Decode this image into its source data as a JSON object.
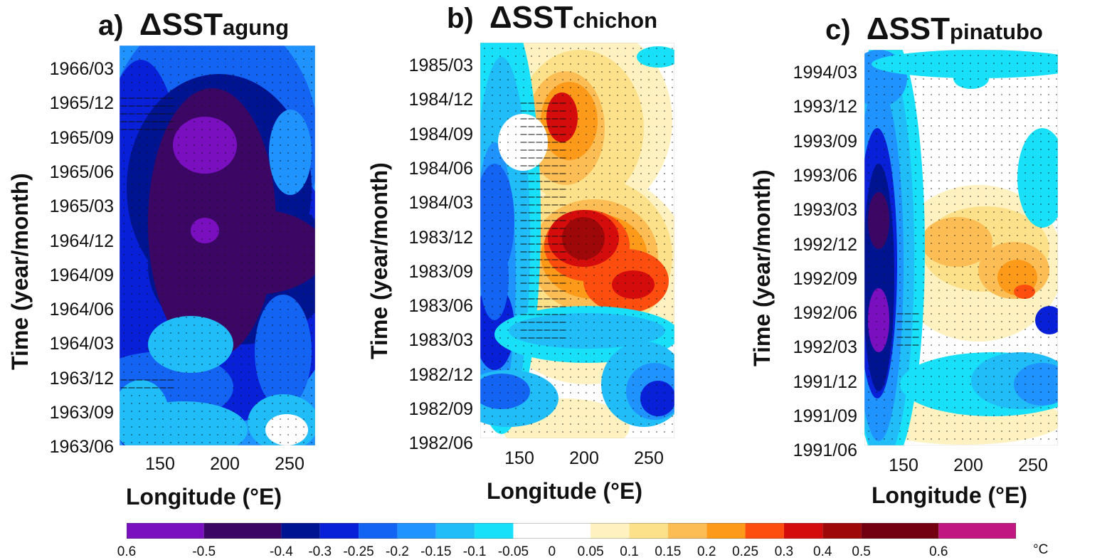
{
  "panels": [
    {
      "letter": "a)",
      "title_main": "ΔSST",
      "title_sub": "agung",
      "yticks": [
        "1966/03",
        "1965/12",
        "1965/09",
        "1965/06",
        "1965/03",
        "1964/12",
        "1964/09",
        "1964/06",
        "1964/03",
        "1963/12",
        "1963/09",
        "1963/06"
      ],
      "xticks": [
        "150",
        "200",
        "250"
      ],
      "ylabel": "Time (year/month)",
      "xlabel": "Longitude (°E)"
    },
    {
      "letter": "b)",
      "title_main": "ΔSST",
      "title_sub": "chichon",
      "yticks": [
        "1985/03",
        "1984/12",
        "1984/09",
        "1984/06",
        "1984/03",
        "1983/12",
        "1983/09",
        "1983/06",
        "1983/03",
        "1982/12",
        "1982/09",
        "1982/06"
      ],
      "xticks": [
        "150",
        "200",
        "250"
      ],
      "ylabel": "Time (year/month)",
      "xlabel": "Longitude (°E)"
    },
    {
      "letter": "c)",
      "title_main": "ΔSST",
      "title_sub": "pinatubo",
      "yticks": [
        "1994/03",
        "1993/12",
        "1993/09",
        "1993/06",
        "1993/03",
        "1992/12",
        "1992/09",
        "1992/06",
        "1992/03",
        "1991/12",
        "1991/09",
        "1991/06"
      ],
      "xticks": [
        "150",
        "200",
        "250"
      ],
      "ylabel": "Time (year/month)",
      "xlabel": "Longitude (°E)"
    }
  ],
  "colorbar": {
    "colors": [
      "#7a0fc0",
      "#3c0764",
      "#001492",
      "#0820d8",
      "#1464f4",
      "#1f93ff",
      "#20bdf8",
      "#18e0f8",
      "#ffffff",
      "#ffffff",
      "#fff2c0",
      "#fde08a",
      "#fdbd55",
      "#fd9a1a",
      "#fd4e10",
      "#d40c0c",
      "#9e0808",
      "#720010",
      "#c01880"
    ],
    "labels": [
      "0.6",
      "-0.5",
      "-0.4",
      "-0.3",
      "-0.25",
      "-0.2",
      "-0.15",
      "-0.1",
      "-0.05",
      "0",
      "0.05",
      "0.1",
      "0.15",
      "0.2",
      "0.25",
      "0.3",
      "0.4",
      "0.5",
      "0.6"
    ],
    "unit": "°C"
  },
  "chart_data": [
    {
      "type": "heatmap",
      "title": "a) ΔSSTagung",
      "xlabel": "Longitude (°E)",
      "ylabel": "Time (year/month)",
      "xlim": [
        120,
        270
      ],
      "ylim": [
        "1963/06",
        "1966/05"
      ],
      "summary_values_C": {
        "western_pacific": -0.3,
        "central_pacific_1964_12": -0.45,
        "central_pacific_1965_09": -0.5,
        "eastern_pacific_1963_09": 0.0
      },
      "vectors": "wind-stress arrows overlaid"
    },
    {
      "type": "heatmap",
      "title": "b) ΔSSTchichon",
      "xlabel": "Longitude (°E)",
      "ylabel": "Time (year/month)",
      "xlim": [
        120,
        270
      ],
      "ylim": [
        "1982/06",
        "1985/05"
      ],
      "summary_values_C": {
        "western_pacific": -0.25,
        "central_pacific_1983_12": 0.4,
        "eastern_pacific_1983_07": 0.4,
        "central_pacific_1984_11": 0.4
      },
      "vectors": "wind-stress arrows overlaid"
    },
    {
      "type": "heatmap",
      "title": "c) ΔSSTpinatubo",
      "xlabel": "Longitude (°E)",
      "ylabel": "Time (year/month)",
      "xlim": [
        120,
        270
      ],
      "ylim": [
        "1991/06",
        "1994/05"
      ],
      "summary_values_C": {
        "western_pacific_1992_04": -0.45,
        "central_pacific_1992_12": 0.2,
        "eastern_pacific_1992_08": 0.3,
        "eastern_pacific_1991_11": -0.2
      },
      "vectors": "wind-stress arrows overlaid"
    }
  ]
}
